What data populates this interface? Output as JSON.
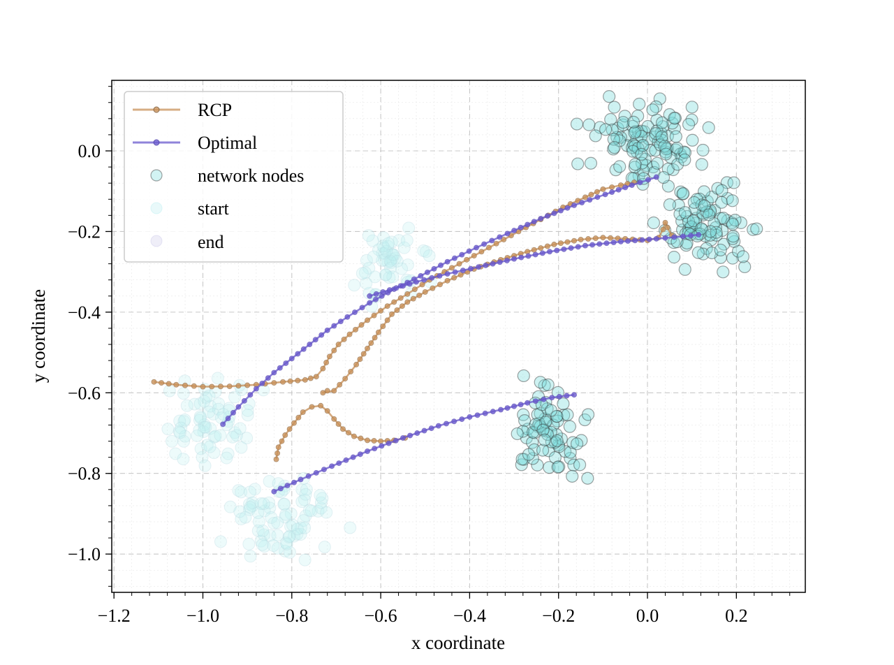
{
  "chart_data": {
    "type": "scatter",
    "title": "",
    "xlabel": "x coordinate",
    "ylabel": "y coordinate",
    "xlim": [
      -1.205,
      0.355
    ],
    "ylim": [
      -1.095,
      0.175
    ],
    "xticks": [
      -1.2,
      -1.0,
      -0.8,
      -0.6,
      -0.4,
      -0.2,
      0.0,
      0.2
    ],
    "xtick_labels": [
      "−1.2",
      "−1.0",
      "−0.8",
      "−0.6",
      "−0.4",
      "−0.2",
      "0.0",
      "0.2"
    ],
    "yticks": [
      0.0,
      -0.2,
      -0.4,
      -0.6,
      -0.8,
      -1.0
    ],
    "ytick_labels": [
      "0.0",
      "−0.2",
      "−0.4",
      "−0.6",
      "−0.8",
      "−1.0"
    ],
    "grid": true,
    "legend": {
      "position": "top-left",
      "entries": [
        "RCP",
        "Optimal",
        "network nodes",
        "start",
        "end"
      ]
    },
    "colors": {
      "rcp": "#c8915a",
      "optimal": "#6a5acd",
      "node_fill": "#7fdcdc",
      "node_edge": "#333333",
      "start_fill": "#bfeff2",
      "end_fill": "#8b87cf"
    },
    "clusters": [
      {
        "name": "end-cluster-1",
        "kind": "end",
        "center": [
          0.0,
          0.02
        ],
        "spread": [
          0.06,
          0.05
        ],
        "count": 110
      },
      {
        "name": "end-cluster-2",
        "kind": "end",
        "center": [
          0.14,
          -0.19
        ],
        "spread": [
          0.05,
          0.045
        ],
        "count": 90
      },
      {
        "name": "end-cluster-3",
        "kind": "end",
        "center": [
          -0.22,
          -0.7
        ],
        "spread": [
          0.04,
          0.055
        ],
        "count": 75
      },
      {
        "name": "start-cluster-1",
        "kind": "start",
        "center": [
          -1.0,
          -0.68
        ],
        "spread": [
          0.055,
          0.055
        ],
        "count": 70
      },
      {
        "name": "start-cluster-2",
        "kind": "start",
        "center": [
          -0.82,
          -0.91
        ],
        "spread": [
          0.06,
          0.05
        ],
        "count": 80
      },
      {
        "name": "start-cluster-3",
        "kind": "start",
        "center": [
          -0.58,
          -0.28
        ],
        "spread": [
          0.04,
          0.045
        ],
        "count": 55
      }
    ],
    "series": [
      {
        "name": "RCP",
        "paths": [
          [
            [
              -1.11,
              -0.573
            ],
            [
              -1.06,
              -0.58
            ],
            [
              -1.0,
              -0.585
            ],
            [
              -0.94,
              -0.584
            ],
            [
              -0.88,
              -0.58
            ],
            [
              -0.82,
              -0.573
            ],
            [
              -0.77,
              -0.568
            ],
            [
              -0.745,
              -0.56
            ],
            [
              -0.73,
              -0.54
            ],
            [
              -0.715,
              -0.51
            ],
            [
              -0.695,
              -0.48
            ],
            [
              -0.67,
              -0.455
            ],
            [
              -0.63,
              -0.42
            ],
            [
              -0.585,
              -0.385
            ],
            [
              -0.54,
              -0.355
            ],
            [
              -0.49,
              -0.32
            ],
            [
              -0.44,
              -0.29
            ],
            [
              -0.39,
              -0.26
            ],
            [
              -0.34,
              -0.23
            ],
            [
              -0.29,
              -0.2
            ],
            [
              -0.24,
              -0.17
            ],
            [
              -0.19,
              -0.14
            ],
            [
              -0.14,
              -0.115
            ],
            [
              -0.1,
              -0.095
            ],
            [
              -0.06,
              -0.085
            ],
            [
              -0.03,
              -0.078
            ]
          ],
          [
            [
              -0.72,
              -0.595
            ],
            [
              -0.73,
              -0.6
            ],
            [
              -0.705,
              -0.595
            ],
            [
              -0.68,
              -0.565
            ],
            [
              -0.655,
              -0.53
            ],
            [
              -0.63,
              -0.49
            ],
            [
              -0.605,
              -0.45
            ],
            [
              -0.575,
              -0.405
            ],
            [
              -0.54,
              -0.375
            ],
            [
              -0.5,
              -0.35
            ],
            [
              -0.45,
              -0.322
            ],
            [
              -0.39,
              -0.293
            ],
            [
              -0.33,
              -0.27
            ],
            [
              -0.27,
              -0.25
            ],
            [
              -0.21,
              -0.232
            ],
            [
              -0.15,
              -0.22
            ],
            [
              -0.1,
              -0.215
            ],
            [
              -0.05,
              -0.218
            ],
            [
              0.0,
              -0.222
            ],
            [
              0.025,
              -0.215
            ],
            [
              0.035,
              -0.195
            ],
            [
              0.04,
              -0.178
            ],
            [
              0.045,
              -0.19
            ],
            [
              0.055,
              -0.21
            ]
          ],
          [
            [
              -0.835,
              -0.765
            ],
            [
              -0.83,
              -0.735
            ],
            [
              -0.815,
              -0.705
            ],
            [
              -0.795,
              -0.675
            ],
            [
              -0.775,
              -0.648
            ],
            [
              -0.755,
              -0.635
            ],
            [
              -0.735,
              -0.632
            ],
            [
              -0.72,
              -0.645
            ],
            [
              -0.705,
              -0.665
            ],
            [
              -0.685,
              -0.69
            ],
            [
              -0.66,
              -0.708
            ],
            [
              -0.63,
              -0.718
            ],
            [
              -0.6,
              -0.72
            ],
            [
              -0.57,
              -0.718
            ],
            [
              -0.545,
              -0.712
            ]
          ]
        ]
      },
      {
        "name": "Optimal",
        "paths": [
          [
            [
              -0.955,
              -0.678
            ],
            [
              -0.92,
              -0.635
            ],
            [
              -0.88,
              -0.59
            ],
            [
              -0.84,
              -0.55
            ],
            [
              -0.8,
              -0.515
            ],
            [
              -0.76,
              -0.48
            ],
            [
              -0.72,
              -0.445
            ],
            [
              -0.675,
              -0.412
            ],
            [
              -0.625,
              -0.377
            ],
            [
              -0.57,
              -0.343
            ],
            [
              -0.51,
              -0.31
            ],
            [
              -0.45,
              -0.275
            ],
            [
              -0.385,
              -0.24
            ],
            [
              -0.315,
              -0.205
            ],
            [
              -0.24,
              -0.168
            ],
            [
              -0.165,
              -0.135
            ],
            [
              -0.095,
              -0.108
            ],
            [
              -0.035,
              -0.085
            ],
            [
              0.02,
              -0.065
            ]
          ],
          [
            [
              -0.625,
              -0.36
            ],
            [
              -0.58,
              -0.345
            ],
            [
              -0.52,
              -0.325
            ],
            [
              -0.45,
              -0.305
            ],
            [
              -0.38,
              -0.288
            ],
            [
              -0.3,
              -0.268
            ],
            [
              -0.22,
              -0.25
            ],
            [
              -0.14,
              -0.235
            ],
            [
              -0.06,
              -0.225
            ],
            [
              0.02,
              -0.218
            ],
            [
              0.08,
              -0.212
            ],
            [
              0.115,
              -0.208
            ]
          ],
          [
            [
              -0.84,
              -0.845
            ],
            [
              -0.78,
              -0.815
            ],
            [
              -0.71,
              -0.782
            ],
            [
              -0.63,
              -0.745
            ],
            [
              -0.55,
              -0.712
            ],
            [
              -0.47,
              -0.682
            ],
            [
              -0.4,
              -0.66
            ],
            [
              -0.33,
              -0.642
            ],
            [
              -0.27,
              -0.625
            ],
            [
              -0.215,
              -0.612
            ],
            [
              -0.165,
              -0.605
            ]
          ]
        ]
      }
    ]
  }
}
